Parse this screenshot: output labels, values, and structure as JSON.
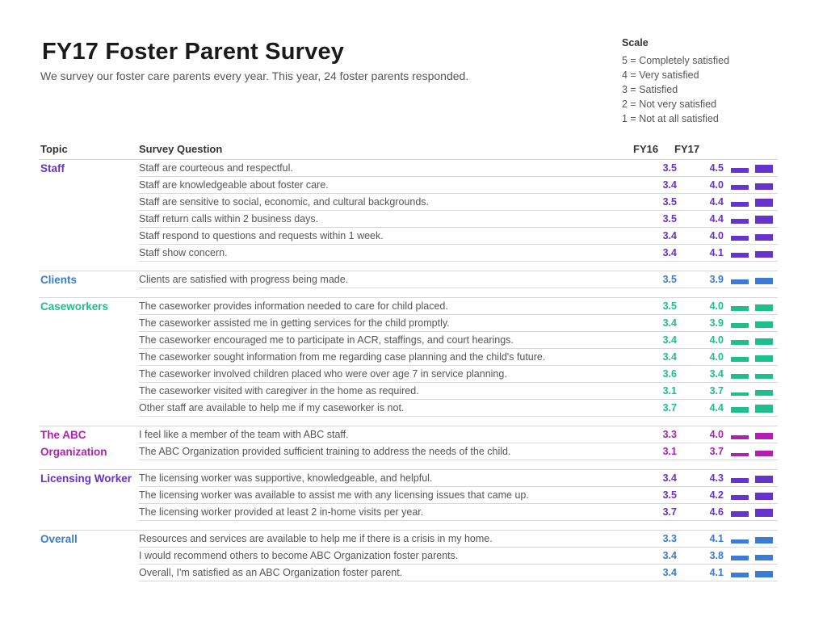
{
  "title": "FY17 Foster Parent Survey",
  "subtitle": "We survey our foster care parents every year. This year, 24 foster parents responded.",
  "scale": {
    "title": "Scale",
    "items": [
      "5 = Completely satisfied",
      "4 = Very satisfied",
      "3 = Satisfied",
      "2 = Not very satisfied",
      "1 = Not at all satisfied"
    ]
  },
  "headers": {
    "topic": "Topic",
    "question": "Survey Question",
    "fy16": "FY16",
    "fy17": "FY17"
  },
  "groups": [
    {
      "topic": "Staff",
      "color": "#6633cc",
      "rows": [
        {
          "q": "Staff are courteous and respectful.",
          "fy16": "3.5",
          "fy17": "4.5"
        },
        {
          "q": "Staff are knowledgeable about foster care.",
          "fy16": "3.4",
          "fy17": "4.0"
        },
        {
          "q": "Staff are sensitive to social, economic, and cultural backgrounds.",
          "fy16": "3.5",
          "fy17": "4.4"
        },
        {
          "q": "Staff return calls within 2 business days.",
          "fy16": "3.5",
          "fy17": "4.4"
        },
        {
          "q": "Staff respond to questions and requests within 1 week.",
          "fy16": "3.4",
          "fy17": "4.0"
        },
        {
          "q": "Staff show concern.",
          "fy16": "3.4",
          "fy17": "4.1"
        }
      ]
    },
    {
      "topic": "Clients",
      "color": "#3a7bd5",
      "rows": [
        {
          "q": "Clients are satisfied with progress being made.",
          "fy16": "3.5",
          "fy17": "3.9"
        }
      ]
    },
    {
      "topic": "Caseworkers",
      "color": "#1dbf8a",
      "rows": [
        {
          "q": "The caseworker provides information needed to care for child placed.",
          "fy16": "3.5",
          "fy17": "4.0"
        },
        {
          "q": "The caseworker assisted me in getting services for the child promptly.",
          "fy16": "3.4",
          "fy17": "3.9"
        },
        {
          "q": "The caseworker encouraged me to participate in ACR, staffings, and court hearings.",
          "fy16": "3.4",
          "fy17": "4.0"
        },
        {
          "q": "The caseworker sought information from me regarding case planning and the child's future.",
          "fy16": "3.4",
          "fy17": "4.0"
        },
        {
          "q": "The caseworker involved children placed who were over age 7 in service planning.",
          "fy16": "3.6",
          "fy17": "3.4"
        },
        {
          "q": "The caseworker visited with caregiver in the home as required.",
          "fy16": "3.1",
          "fy17": "3.7"
        },
        {
          "q": "Other staff are available to help me if my caseworker is not.",
          "fy16": "3.7",
          "fy17": "4.4"
        }
      ]
    },
    {
      "topic": "The ABC Organization",
      "color": "#b01fb0",
      "rows": [
        {
          "q": "I feel like a member of the team with ABC staff.",
          "fy16": "3.3",
          "fy17": "4.0"
        },
        {
          "q": "The ABC Organization provided sufficient training to address the needs of the child.",
          "fy16": "3.1",
          "fy17": "3.7"
        }
      ]
    },
    {
      "topic": "Licensing Worker",
      "color": "#6633cc",
      "rows": [
        {
          "q": "The licensing worker was supportive, knowledgeable, and helpful.",
          "fy16": "3.4",
          "fy17": "4.3"
        },
        {
          "q": "The licensing worker was available to assist me with any licensing issues that came up.",
          "fy16": "3.5",
          "fy17": "4.2"
        },
        {
          "q": "The licensing worker provided at least 2 in-home visits per year.",
          "fy16": "3.7",
          "fy17": "4.6"
        }
      ]
    },
    {
      "topic": "Overall",
      "color": "#3a7bd5",
      "rows": [
        {
          "q": "Resources and services are available to help me if there is a crisis in my home.",
          "fy16": "3.3",
          "fy17": "4.1"
        },
        {
          "q": "I would recommend others to become ABC Organization foster parents.",
          "fy16": "3.4",
          "fy17": "3.8"
        },
        {
          "q": "Overall, I'm satisfied as an ABC Organization foster parent.",
          "fy16": "3.4",
          "fy17": "4.1"
        }
      ]
    }
  ]
}
